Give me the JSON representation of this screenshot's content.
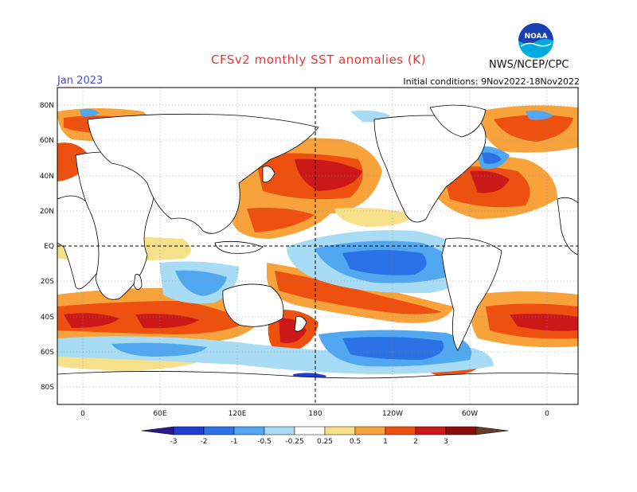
{
  "header": {
    "title": "CFSv2 monthly SST anomalies (K)",
    "month": "Jan 2023",
    "initial_conditions": "Initial conditions: 9Nov2022-18Nov2022",
    "agency": "NWS/NCEP/CPC",
    "logo_text": "NOAA"
  },
  "axes": {
    "lat_labels": [
      "80N",
      "60N",
      "40N",
      "20N",
      "EQ",
      "20S",
      "40S",
      "60S",
      "80S"
    ],
    "lon_labels": [
      "0",
      "60E",
      "120E",
      "180",
      "120W",
      "60W",
      "0"
    ]
  },
  "colorbar": {
    "levels": [
      "-3",
      "-2",
      "-1",
      "-0.5",
      "-0.25",
      "0.25",
      "0.5",
      "1",
      "2",
      "3"
    ],
    "colors": [
      "#2a1a8c",
      "#1f3fd0",
      "#2a72e6",
      "#52a8f0",
      "#a8dcf4",
      "#ffffff",
      "#f7e08a",
      "#f7a23a",
      "#ee5010",
      "#cc1818",
      "#8c0a0a",
      "#6b3a2a"
    ]
  },
  "colors": {
    "title": "#e03a3a",
    "month": "#4a4ad6",
    "land": "#ffffff",
    "coast": "#000000",
    "logo_blue": "#1a3fb0",
    "logo_cyan": "#00a9e0"
  }
}
